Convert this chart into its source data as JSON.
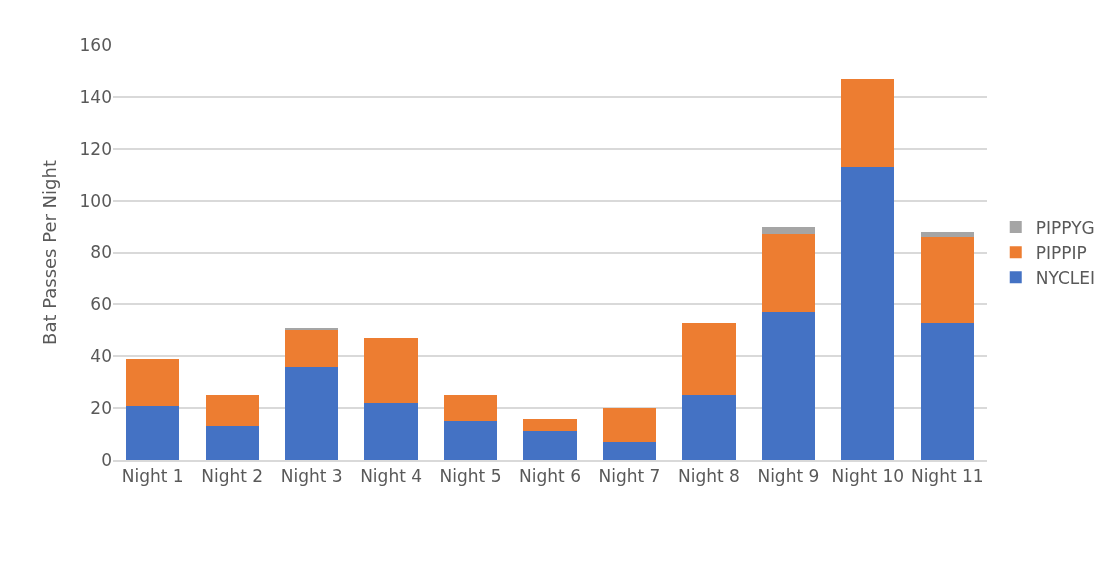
{
  "chart_data": {
    "type": "bar",
    "stacked": true,
    "ylabel": "Bat Passes Per Night",
    "categories": [
      "Night 1",
      "Night 2",
      "Night 3",
      "Night 4",
      "Night 5",
      "Night 6",
      "Night 7",
      "Night 8",
      "Night 9",
      "Night 10",
      "Night 11"
    ],
    "series": [
      {
        "name": "NYCLEI",
        "color": "#4472c4",
        "values": [
          21,
          13,
          36,
          22,
          15,
          11,
          7,
          25,
          57,
          113,
          53
        ]
      },
      {
        "name": "PIPPIP",
        "color": "#ed7d31",
        "values": [
          18,
          12,
          14,
          25,
          10,
          5,
          13,
          28,
          30,
          34,
          33
        ]
      },
      {
        "name": "PIPPYG",
        "color": "#a5a5a5",
        "values": [
          null,
          null,
          1,
          null,
          null,
          null,
          null,
          null,
          3,
          null,
          2
        ]
      }
    ],
    "ylim": [
      0,
      160
    ],
    "yticks": [
      0,
      20,
      40,
      60,
      80,
      100,
      120,
      140,
      160
    ],
    "grid": "y",
    "legend": "right"
  }
}
